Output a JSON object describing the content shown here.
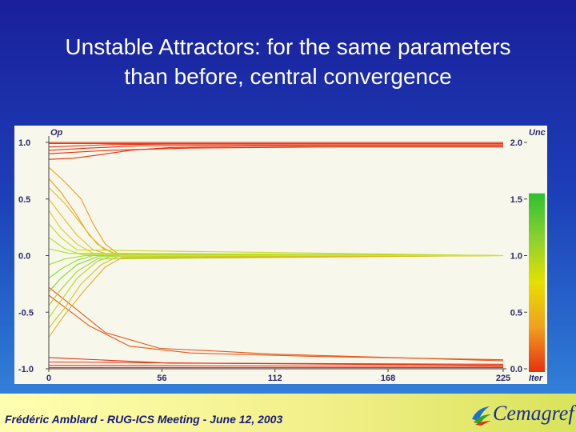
{
  "slide": {
    "title": "Unstable Attractors: for the same parameters than before, central convergence",
    "footer": "Frédéric Amblard - RUG-ICS Meeting - June 12, 2003",
    "logo": "Cemagref"
  },
  "colors": {
    "background": "#1c3fb8",
    "plot_bg": "#f7f7ec",
    "footer_bg": "#f2f08a",
    "extreme": "#e83010",
    "center": "#e6e000",
    "inner": "#a6e028"
  },
  "chart_data": {
    "type": "line",
    "title": "",
    "xlabel": "Iter",
    "ylabel": "Op",
    "y2label": "Unc",
    "xlim": [
      0,
      225
    ],
    "ylim": [
      -1.0,
      1.0
    ],
    "y2lim": [
      0.0,
      2.0
    ],
    "x_ticks": [
      "0",
      "56",
      "112",
      "168",
      "225"
    ],
    "y_ticks": [
      "1.0",
      "0.5",
      "0.0",
      "-0.5",
      "-1.0"
    ],
    "y2_ticks": [
      "2.0",
      "1.5",
      "1.0",
      "0.5",
      "0.0"
    ],
    "colorbar": {
      "label": "Unc",
      "range": [
        0.0,
        2.0
      ],
      "colors": [
        "#e83010",
        "#f0a020",
        "#e6e000",
        "#8ad030",
        "#30c030"
      ]
    },
    "series": [
      {
        "values": [
          [
            0,
            1.0
          ],
          [
            225,
            1.0
          ]
        ],
        "color": "#e83010"
      },
      {
        "values": [
          [
            0,
            0.99
          ],
          [
            225,
            0.99
          ]
        ],
        "color": "#e83010"
      },
      {
        "values": [
          [
            0,
            0.96
          ],
          [
            30,
            0.98
          ],
          [
            60,
            0.985
          ],
          [
            225,
            0.985
          ]
        ],
        "color": "#e83010"
      },
      {
        "values": [
          [
            0,
            0.93
          ],
          [
            20,
            0.95
          ],
          [
            45,
            0.97
          ],
          [
            90,
            0.975
          ],
          [
            150,
            0.975
          ],
          [
            225,
            0.975
          ]
        ],
        "color": "#e83010"
      },
      {
        "values": [
          [
            0,
            0.9
          ],
          [
            10,
            0.91
          ],
          [
            30,
            0.93
          ],
          [
            70,
            0.95
          ],
          [
            140,
            0.96
          ],
          [
            225,
            0.96
          ]
        ],
        "color": "#e83010"
      },
      {
        "values": [
          [
            0,
            0.85
          ],
          [
            12,
            0.86
          ],
          [
            25,
            0.89
          ],
          [
            40,
            0.93
          ],
          [
            60,
            0.955
          ],
          [
            100,
            0.965
          ],
          [
            225,
            0.965
          ]
        ],
        "color": "#e83010"
      },
      {
        "values": [
          [
            0,
            -0.28
          ],
          [
            12,
            -0.45
          ],
          [
            28,
            -0.68
          ],
          [
            55,
            -0.82
          ],
          [
            80,
            -0.84
          ],
          [
            110,
            -0.87
          ],
          [
            170,
            -0.9
          ],
          [
            225,
            -0.93
          ]
        ],
        "color": "#e85818"
      },
      {
        "values": [
          [
            0,
            -0.35
          ],
          [
            20,
            -0.62
          ],
          [
            40,
            -0.8
          ],
          [
            70,
            -0.86
          ],
          [
            130,
            -0.89
          ],
          [
            225,
            -0.92
          ]
        ],
        "color": "#e85818"
      },
      {
        "values": [
          [
            0,
            -0.9
          ],
          [
            60,
            -0.95
          ],
          [
            225,
            -0.96
          ]
        ],
        "color": "#e83010"
      },
      {
        "values": [
          [
            0,
            -0.94
          ],
          [
            225,
            -0.97
          ]
        ],
        "color": "#e83010"
      },
      {
        "values": [
          [
            0,
            -0.97
          ],
          [
            225,
            -0.98
          ]
        ],
        "color": "#e83010"
      },
      {
        "values": [
          [
            0,
            -0.99
          ],
          [
            225,
            -0.99
          ]
        ],
        "color": "#e83010"
      },
      {
        "values": [
          [
            0,
            -1.0
          ],
          [
            225,
            -1.0
          ]
        ],
        "color": "#e83010"
      },
      {
        "values": [
          [
            0,
            0.78
          ],
          [
            8,
            0.65
          ],
          [
            16,
            0.5
          ],
          [
            22,
            0.28
          ],
          [
            28,
            0.1
          ],
          [
            34,
            0.02
          ],
          [
            40,
            0.0
          ],
          [
            225,
            0.0
          ]
        ],
        "color": "#e8a020"
      },
      {
        "values": [
          [
            0,
            0.68
          ],
          [
            6,
            0.56
          ],
          [
            13,
            0.38
          ],
          [
            20,
            0.18
          ],
          [
            27,
            0.06
          ],
          [
            34,
            0.01
          ],
          [
            225,
            0.0
          ]
        ],
        "color": "#e8a020"
      },
      {
        "values": [
          [
            0,
            0.6
          ],
          [
            8,
            0.46
          ],
          [
            16,
            0.28
          ],
          [
            24,
            0.1
          ],
          [
            32,
            0.02
          ],
          [
            225,
            0.0
          ]
        ],
        "color": "#e8b828"
      },
      {
        "values": [
          [
            0,
            0.5
          ],
          [
            6,
            0.36
          ],
          [
            14,
            0.18
          ],
          [
            22,
            0.05
          ],
          [
            30,
            0.01
          ],
          [
            225,
            0.0
          ]
        ],
        "color": "#e0c020"
      },
      {
        "values": [
          [
            0,
            0.4
          ],
          [
            6,
            0.24
          ],
          [
            14,
            0.1
          ],
          [
            22,
            0.02
          ],
          [
            225,
            0.0
          ]
        ],
        "color": "#d8d020"
      },
      {
        "values": [
          [
            0,
            0.28
          ],
          [
            6,
            0.16
          ],
          [
            14,
            0.05
          ],
          [
            225,
            0.0
          ]
        ],
        "color": "#c8d820"
      },
      {
        "values": [
          [
            0,
            0.16
          ],
          [
            8,
            0.06
          ],
          [
            16,
            0.01
          ],
          [
            225,
            0.0
          ]
        ],
        "color": "#b8dc28"
      },
      {
        "values": [
          [
            0,
            0.06
          ],
          [
            10,
            0.02
          ],
          [
            225,
            0.0
          ]
        ],
        "color": "#a6e028"
      },
      {
        "values": [
          [
            0,
            -0.08
          ],
          [
            8,
            -0.03
          ],
          [
            18,
            0.0
          ],
          [
            225,
            0.0
          ]
        ],
        "color": "#a6e028"
      },
      {
        "values": [
          [
            0,
            -0.2
          ],
          [
            6,
            -0.12
          ],
          [
            14,
            -0.04
          ],
          [
            22,
            0.0
          ],
          [
            225,
            0.0
          ]
        ],
        "color": "#90dc30"
      },
      {
        "values": [
          [
            0,
            -0.32
          ],
          [
            6,
            -0.2
          ],
          [
            14,
            -0.08
          ],
          [
            24,
            -0.01
          ],
          [
            225,
            0.0
          ]
        ],
        "color": "#88d830"
      },
      {
        "values": [
          [
            0,
            -0.44
          ],
          [
            6,
            -0.3
          ],
          [
            14,
            -0.14
          ],
          [
            24,
            -0.03
          ],
          [
            225,
            0.0
          ]
        ],
        "color": "#a0d828"
      },
      {
        "values": [
          [
            0,
            -0.55
          ],
          [
            6,
            -0.4
          ],
          [
            14,
            -0.2
          ],
          [
            24,
            -0.05
          ],
          [
            32,
            0.0
          ],
          [
            225,
            0.0
          ]
        ],
        "color": "#b8d828"
      },
      {
        "values": [
          [
            0,
            -0.64
          ],
          [
            8,
            -0.46
          ],
          [
            16,
            -0.25
          ],
          [
            26,
            -0.08
          ],
          [
            34,
            -0.01
          ],
          [
            225,
            0.0
          ]
        ],
        "color": "#d0c828"
      },
      {
        "values": [
          [
            0,
            -0.72
          ],
          [
            8,
            -0.52
          ],
          [
            18,
            -0.3
          ],
          [
            28,
            -0.1
          ],
          [
            36,
            -0.02
          ],
          [
            225,
            0.0
          ]
        ],
        "color": "#e0b028"
      }
    ]
  }
}
